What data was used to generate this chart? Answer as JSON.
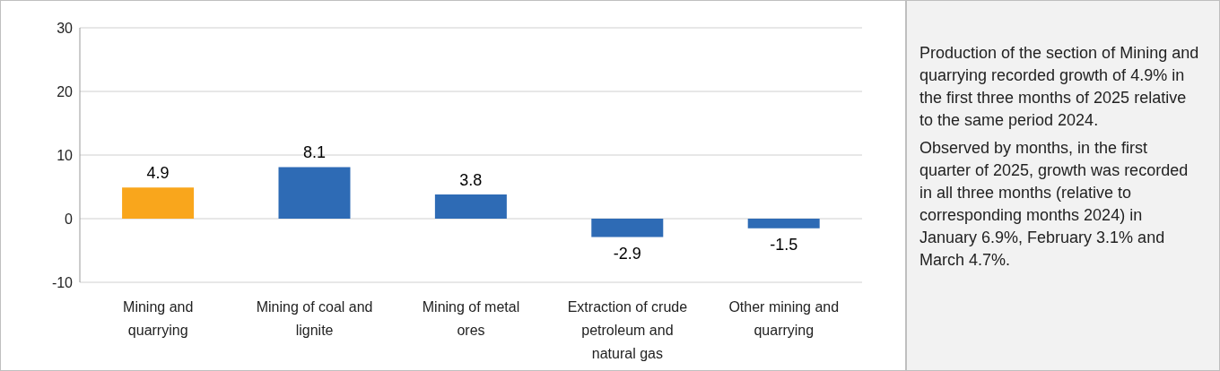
{
  "chart_data": {
    "type": "bar",
    "categories": [
      "Mining and quarrying",
      "Mining of coal and lignite",
      "Mining of metal ores",
      "Extraction of crude petroleum and natural gas",
      "Other mining and quarrying"
    ],
    "values": [
      4.9,
      8.1,
      3.8,
      -2.9,
      -1.5
    ],
    "colors": [
      "#f9a61c",
      "#2e6bb5",
      "#2e6bb5",
      "#2e6bb5",
      "#2e6bb5"
    ],
    "ylim": [
      -10,
      30
    ],
    "yticks": [
      -10,
      0,
      10,
      20,
      30
    ],
    "grid": "y",
    "data_labels": true,
    "annotations": [
      "Production of the section of Mining and quarrying recorded growth of 4.9% in the first three months of 2025 relative to the same period 2024.",
      "Observed by months, in the first quarter of 2025, growth was recorded in all three months (relative to corresponding months 2024) in January 6.9%, February 3.1% and March 4.7%."
    ]
  }
}
